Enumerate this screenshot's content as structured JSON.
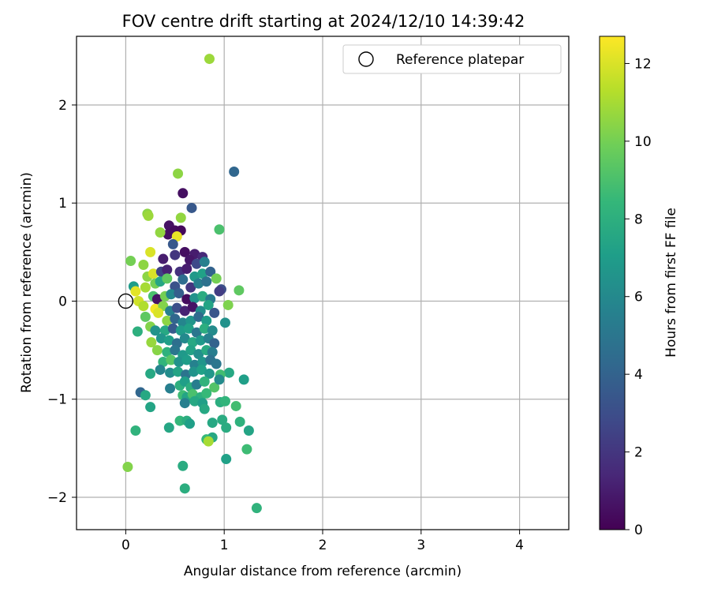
{
  "chart_data": {
    "type": "scatter",
    "title": "FOV centre drift starting at 2024/12/10 14:39:42",
    "xlabel": "Angular distance from reference (arcmin)",
    "ylabel": "Rotation from reference (arcmin)",
    "xlim": [
      -0.5,
      4.5
    ],
    "ylim": [
      -2.33,
      2.7
    ],
    "xticks": [
      0,
      1,
      2,
      3,
      4
    ],
    "yticks": [
      -2,
      -1,
      0,
      1,
      2
    ],
    "grid": true,
    "legend": {
      "placement": "top-right",
      "entries": [
        "Reference platepar"
      ]
    },
    "reference_point": {
      "x": 0,
      "y": 0,
      "marker": "hollow-circle"
    },
    "colorbar": {
      "label": "Hours from first FF file",
      "colormap": "viridis",
      "range": [
        0,
        12.7
      ],
      "ticks": [
        0,
        2,
        4,
        6,
        8,
        10,
        12
      ]
    },
    "colormap_stops": [
      "#440154",
      "#482878",
      "#3e4a89",
      "#31688e",
      "#26828e",
      "#1f9e89",
      "#35b779",
      "#6ece58",
      "#b5de2b",
      "#fde725"
    ],
    "series": [
      {
        "marker": "filled-circle",
        "points": [
          {
            "x": 0.85,
            "y": 2.47,
            "c": 10.8
          },
          {
            "x": 0.53,
            "y": 1.3,
            "c": 10.5
          },
          {
            "x": 1.1,
            "y": 1.32,
            "c": 4.2
          },
          {
            "x": 0.58,
            "y": 1.1,
            "c": 0.5
          },
          {
            "x": 0.67,
            "y": 0.95,
            "c": 3.5
          },
          {
            "x": 0.22,
            "y": 0.89,
            "c": 10.5
          },
          {
            "x": 0.23,
            "y": 0.87,
            "c": 10.8
          },
          {
            "x": 0.56,
            "y": 0.85,
            "c": 10.6
          },
          {
            "x": 0.44,
            "y": 0.77,
            "c": 0.6
          },
          {
            "x": 0.5,
            "y": 0.72,
            "c": 0.4
          },
          {
            "x": 0.56,
            "y": 0.72,
            "c": 0.3
          },
          {
            "x": 0.43,
            "y": 0.68,
            "c": 0.5
          },
          {
            "x": 0.52,
            "y": 0.66,
            "c": 12.3
          },
          {
            "x": 0.35,
            "y": 0.7,
            "c": 10.6
          },
          {
            "x": 0.95,
            "y": 0.73,
            "c": 9.0
          },
          {
            "x": 0.05,
            "y": 0.41,
            "c": 10.0
          },
          {
            "x": 0.18,
            "y": 0.37,
            "c": 10.5
          },
          {
            "x": 0.25,
            "y": 0.5,
            "c": 12.0
          },
          {
            "x": 0.38,
            "y": 0.43,
            "c": 1.0
          },
          {
            "x": 0.5,
            "y": 0.47,
            "c": 2.0
          },
          {
            "x": 0.6,
            "y": 0.5,
            "c": 0.5
          },
          {
            "x": 0.7,
            "y": 0.48,
            "c": 1.0
          },
          {
            "x": 0.78,
            "y": 0.45,
            "c": 1.5
          },
          {
            "x": 0.48,
            "y": 0.58,
            "c": 3.5
          },
          {
            "x": 0.65,
            "y": 0.42,
            "c": 0.8
          },
          {
            "x": 0.72,
            "y": 0.38,
            "c": 2.8
          },
          {
            "x": 0.8,
            "y": 0.4,
            "c": 5.5
          },
          {
            "x": 0.22,
            "y": 0.25,
            "c": 10.5
          },
          {
            "x": 0.28,
            "y": 0.28,
            "c": 12.0
          },
          {
            "x": 0.36,
            "y": 0.3,
            "c": 2.5
          },
          {
            "x": 0.42,
            "y": 0.32,
            "c": 1.2
          },
          {
            "x": 0.55,
            "y": 0.3,
            "c": 1.8
          },
          {
            "x": 0.62,
            "y": 0.33,
            "c": 1.0
          },
          {
            "x": 0.7,
            "y": 0.25,
            "c": 6.8
          },
          {
            "x": 0.78,
            "y": 0.28,
            "c": 7.2
          },
          {
            "x": 0.86,
            "y": 0.3,
            "c": 4.0
          },
          {
            "x": 0.92,
            "y": 0.23,
            "c": 10.0
          },
          {
            "x": 0.97,
            "y": 0.12,
            "c": 3.0
          },
          {
            "x": 0.08,
            "y": 0.15,
            "c": 7.0
          },
          {
            "x": 0.2,
            "y": 0.14,
            "c": 11.0
          },
          {
            "x": 0.3,
            "y": 0.18,
            "c": 10.0
          },
          {
            "x": 0.35,
            "y": 0.2,
            "c": 7.5
          },
          {
            "x": 0.42,
            "y": 0.23,
            "c": 9.5
          },
          {
            "x": 0.5,
            "y": 0.15,
            "c": 3.2
          },
          {
            "x": 0.58,
            "y": 0.22,
            "c": 4.5
          },
          {
            "x": 0.66,
            "y": 0.14,
            "c": 2.0
          },
          {
            "x": 0.74,
            "y": 0.18,
            "c": 5.5
          },
          {
            "x": 0.82,
            "y": 0.2,
            "c": 4.8
          },
          {
            "x": 0.95,
            "y": 0.1,
            "c": 2.3
          },
          {
            "x": 1.15,
            "y": 0.11,
            "c": 9.5
          },
          {
            "x": 0.1,
            "y": 0.1,
            "c": 12.2
          },
          {
            "x": 0.13,
            "y": 0.0,
            "c": 11.8
          },
          {
            "x": 0.28,
            "y": 0.05,
            "c": 9.0
          },
          {
            "x": 0.32,
            "y": 0.02,
            "c": 0.6
          },
          {
            "x": 0.4,
            "y": 0.05,
            "c": 10.0
          },
          {
            "x": 0.46,
            "y": 0.07,
            "c": 6.0
          },
          {
            "x": 0.54,
            "y": 0.08,
            "c": 3.8
          },
          {
            "x": 0.62,
            "y": 0.02,
            "c": 0.4
          },
          {
            "x": 0.7,
            "y": 0.03,
            "c": 6.5
          },
          {
            "x": 0.78,
            "y": 0.05,
            "c": 7.8
          },
          {
            "x": 0.86,
            "y": 0.02,
            "c": 5.2
          },
          {
            "x": 1.04,
            "y": -0.04,
            "c": 10.2
          },
          {
            "x": 0.18,
            "y": -0.05,
            "c": 11.2
          },
          {
            "x": 0.3,
            "y": -0.08,
            "c": 12.5
          },
          {
            "x": 0.38,
            "y": -0.05,
            "c": 10.3
          },
          {
            "x": 0.45,
            "y": -0.1,
            "c": 5.5
          },
          {
            "x": 0.52,
            "y": -0.07,
            "c": 3.0
          },
          {
            "x": 0.6,
            "y": -0.1,
            "c": 1.2
          },
          {
            "x": 0.68,
            "y": -0.06,
            "c": 0.7
          },
          {
            "x": 0.76,
            "y": -0.1,
            "c": 6.2
          },
          {
            "x": 0.84,
            "y": -0.04,
            "c": 7.4
          },
          {
            "x": 0.9,
            "y": -0.12,
            "c": 3.4
          },
          {
            "x": 0.2,
            "y": -0.16,
            "c": 9.5
          },
          {
            "x": 0.33,
            "y": -0.12,
            "c": 12.0
          },
          {
            "x": 0.42,
            "y": -0.2,
            "c": 10.5
          },
          {
            "x": 0.5,
            "y": -0.18,
            "c": 4.2
          },
          {
            "x": 0.58,
            "y": -0.22,
            "c": 5.8
          },
          {
            "x": 0.66,
            "y": -0.2,
            "c": 6.6
          },
          {
            "x": 0.74,
            "y": -0.16,
            "c": 4.4
          },
          {
            "x": 0.82,
            "y": -0.2,
            "c": 7.0
          },
          {
            "x": 1.01,
            "y": -0.22,
            "c": 6.4
          },
          {
            "x": 0.25,
            "y": -0.26,
            "c": 10.3
          },
          {
            "x": 0.12,
            "y": -0.31,
            "c": 8.0
          },
          {
            "x": 0.3,
            "y": -0.3,
            "c": 6.5
          },
          {
            "x": 0.4,
            "y": -0.3,
            "c": 7.6
          },
          {
            "x": 0.48,
            "y": -0.28,
            "c": 3.6
          },
          {
            "x": 0.56,
            "y": -0.3,
            "c": 6.9
          },
          {
            "x": 0.64,
            "y": -0.28,
            "c": 7.2
          },
          {
            "x": 0.72,
            "y": -0.32,
            "c": 5.0
          },
          {
            "x": 0.8,
            "y": -0.28,
            "c": 7.9
          },
          {
            "x": 0.88,
            "y": -0.3,
            "c": 6.1
          },
          {
            "x": 0.26,
            "y": -0.42,
            "c": 10.7
          },
          {
            "x": 0.36,
            "y": -0.38,
            "c": 6.6
          },
          {
            "x": 0.44,
            "y": -0.4,
            "c": 7.1
          },
          {
            "x": 0.52,
            "y": -0.43,
            "c": 4.6
          },
          {
            "x": 0.6,
            "y": -0.38,
            "c": 6.0
          },
          {
            "x": 0.68,
            "y": -0.42,
            "c": 7.6
          },
          {
            "x": 0.76,
            "y": -0.4,
            "c": 6.8
          },
          {
            "x": 0.84,
            "y": -0.38,
            "c": 5.6
          },
          {
            "x": 0.9,
            "y": -0.43,
            "c": 4.0
          },
          {
            "x": 0.32,
            "y": -0.5,
            "c": 10.4
          },
          {
            "x": 0.42,
            "y": -0.52,
            "c": 8.1
          },
          {
            "x": 0.5,
            "y": -0.5,
            "c": 5.0
          },
          {
            "x": 0.58,
            "y": -0.55,
            "c": 6.8
          },
          {
            "x": 0.66,
            "y": -0.5,
            "c": 7.3
          },
          {
            "x": 0.74,
            "y": -0.54,
            "c": 6.3
          },
          {
            "x": 0.82,
            "y": -0.5,
            "c": 7.7
          },
          {
            "x": 0.88,
            "y": -0.52,
            "c": 5.4
          },
          {
            "x": 0.38,
            "y": -0.62,
            "c": 8.3
          },
          {
            "x": 0.46,
            "y": -0.6,
            "c": 9.3
          },
          {
            "x": 0.54,
            "y": -0.62,
            "c": 6.4
          },
          {
            "x": 0.62,
            "y": -0.6,
            "c": 7.0
          },
          {
            "x": 0.7,
            "y": -0.65,
            "c": 5.6
          },
          {
            "x": 0.78,
            "y": -0.62,
            "c": 6.6
          },
          {
            "x": 0.86,
            "y": -0.6,
            "c": 4.8
          },
          {
            "x": 0.92,
            "y": -0.64,
            "c": 5.0
          },
          {
            "x": 0.25,
            "y": -0.74,
            "c": 7.6
          },
          {
            "x": 0.35,
            "y": -0.7,
            "c": 5.8
          },
          {
            "x": 0.45,
            "y": -0.73,
            "c": 6.2
          },
          {
            "x": 0.53,
            "y": -0.72,
            "c": 7.4
          },
          {
            "x": 0.61,
            "y": -0.75,
            "c": 4.9
          },
          {
            "x": 0.69,
            "y": -0.72,
            "c": 6.5
          },
          {
            "x": 0.77,
            "y": -0.7,
            "c": 7.2
          },
          {
            "x": 0.85,
            "y": -0.74,
            "c": 6.7
          },
          {
            "x": 1.05,
            "y": -0.73,
            "c": 7.6
          },
          {
            "x": 0.96,
            "y": -0.75,
            "c": 8.8
          },
          {
            "x": 1.2,
            "y": -0.8,
            "c": 7.1
          },
          {
            "x": 0.45,
            "y": -0.89,
            "c": 5.5
          },
          {
            "x": 0.55,
            "y": -0.86,
            "c": 8.0
          },
          {
            "x": 0.6,
            "y": -0.82,
            "c": 7.1
          },
          {
            "x": 0.66,
            "y": -0.88,
            "c": 7.9
          },
          {
            "x": 0.72,
            "y": -0.85,
            "c": 5.4
          },
          {
            "x": 0.8,
            "y": -0.82,
            "c": 8.2
          },
          {
            "x": 0.9,
            "y": -0.88,
            "c": 9.2
          },
          {
            "x": 0.95,
            "y": -0.8,
            "c": 6.1
          },
          {
            "x": 0.15,
            "y": -0.93,
            "c": 4.2
          },
          {
            "x": 0.2,
            "y": -0.96,
            "c": 7.6
          },
          {
            "x": 0.58,
            "y": -0.96,
            "c": 8.7
          },
          {
            "x": 0.62,
            "y": -0.98,
            "c": 7.4
          },
          {
            "x": 0.68,
            "y": -0.95,
            "c": 9.0
          },
          {
            "x": 0.76,
            "y": -0.98,
            "c": 8.0
          },
          {
            "x": 0.82,
            "y": -0.94,
            "c": 8.5
          },
          {
            "x": 0.6,
            "y": -1.04,
            "c": 5.5
          },
          {
            "x": 0.7,
            "y": -1.02,
            "c": 7.6
          },
          {
            "x": 0.78,
            "y": -1.04,
            "c": 7.1
          },
          {
            "x": 0.96,
            "y": -1.03,
            "c": 7.9
          },
          {
            "x": 1.01,
            "y": -1.02,
            "c": 8.3
          },
          {
            "x": 0.25,
            "y": -1.08,
            "c": 7.4
          },
          {
            "x": 0.8,
            "y": -1.1,
            "c": 7.6
          },
          {
            "x": 1.12,
            "y": -1.07,
            "c": 8.8
          },
          {
            "x": 0.98,
            "y": -1.21,
            "c": 7.8
          },
          {
            "x": 0.55,
            "y": -1.22,
            "c": 8.4
          },
          {
            "x": 0.62,
            "y": -1.22,
            "c": 7.9
          },
          {
            "x": 0.65,
            "y": -1.25,
            "c": 7.1
          },
          {
            "x": 0.88,
            "y": -1.24,
            "c": 7.6
          },
          {
            "x": 1.16,
            "y": -1.23,
            "c": 8.1
          },
          {
            "x": 0.44,
            "y": -1.29,
            "c": 7.5
          },
          {
            "x": 1.02,
            "y": -1.29,
            "c": 7.8
          },
          {
            "x": 1.25,
            "y": -1.32,
            "c": 7.4
          },
          {
            "x": 0.1,
            "y": -1.32,
            "c": 8.2
          },
          {
            "x": 0.82,
            "y": -1.41,
            "c": 8.5
          },
          {
            "x": 0.88,
            "y": -1.39,
            "c": 7.6
          },
          {
            "x": 0.84,
            "y": -1.43,
            "c": 11.0
          },
          {
            "x": 1.23,
            "y": -1.51,
            "c": 8.7
          },
          {
            "x": 1.02,
            "y": -1.61,
            "c": 7.2
          },
          {
            "x": 0.58,
            "y": -1.68,
            "c": 7.8
          },
          {
            "x": 0.02,
            "y": -1.69,
            "c": 10.3
          },
          {
            "x": 0.6,
            "y": -1.91,
            "c": 7.9
          },
          {
            "x": 1.33,
            "y": -2.11,
            "c": 8.2
          }
        ]
      }
    ]
  }
}
